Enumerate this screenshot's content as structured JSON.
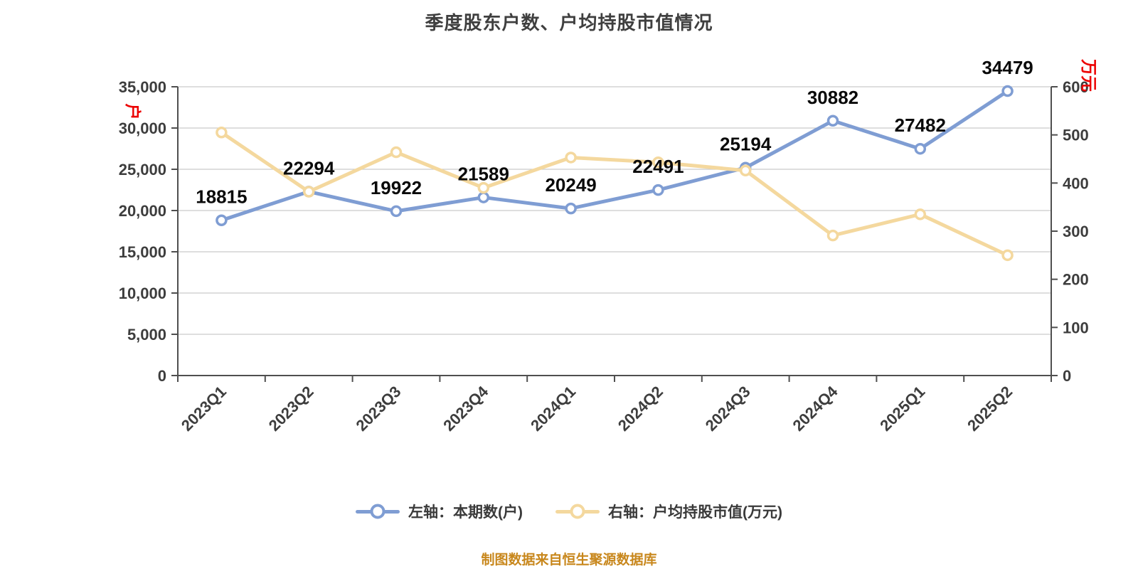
{
  "caption": "制图数据来自恒生聚源数据库",
  "legend": [
    {
      "label": "左轴：本期数(户)",
      "color": "#7F9DD3"
    },
    {
      "label": "右轴：户均持股市值(万元)",
      "color": "#F4D89E"
    }
  ],
  "colors": {
    "background": "#FFFFFF",
    "blue_series": "#7F9DD3",
    "yellow_series": "#F4D89E",
    "marker_fill": "#FFFFFF",
    "grid_line": "#C9C9C9",
    "axis_line": "#4F4F4F",
    "tick_label": "#3D3D3D",
    "data_label": "#0A0A0A",
    "title": "#3F3F3F",
    "legend_text": "#3A3A3A",
    "caption": "#C8871C",
    "axis_name_red": "#EC0000"
  },
  "chart_data": {
    "type": "line",
    "title": "季度股东户数、户均持股市值情况",
    "categories": [
      "2023Q1",
      "2023Q2",
      "2023Q3",
      "2023Q4",
      "2024Q1",
      "2024Q2",
      "2024Q3",
      "2024Q4",
      "2025Q1",
      "2025Q2"
    ],
    "series": [
      {
        "name": "左轴：本期数(户)",
        "axis": "left",
        "color": "#7F9DD3",
        "show_labels": true,
        "values": [
          18815,
          22294,
          19922,
          21589,
          20249,
          22491,
          25194,
          30882,
          27482,
          34479
        ]
      },
      {
        "name": "右轴：户均持股市值(万元)",
        "axis": "right",
        "color": "#F4D89E",
        "show_labels": false,
        "values": [
          505,
          382,
          464,
          390,
          453,
          443,
          426,
          291,
          335,
          250
        ]
      }
    ],
    "left_axis": {
      "name": "户",
      "min": 0,
      "max": 35000,
      "tick_step": 5000,
      "tick_labels": [
        "0",
        "5,000",
        "10,000",
        "15,000",
        "20,000",
        "25,000",
        "30,000",
        "35,000"
      ]
    },
    "right_axis": {
      "name": "万元",
      "min": 0,
      "max": 600,
      "tick_step": 100,
      "tick_labels": [
        "0",
        "100",
        "200",
        "300",
        "400",
        "500",
        "600"
      ]
    },
    "grid": true,
    "legend_position": "bottom",
    "x_label_rotation": -45
  }
}
